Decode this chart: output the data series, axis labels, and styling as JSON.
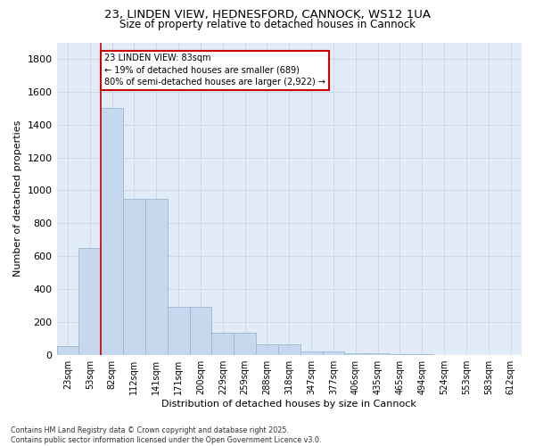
{
  "title1": "23, LINDEN VIEW, HEDNESFORD, CANNOCK, WS12 1UA",
  "title2": "Size of property relative to detached houses in Cannock",
  "xlabel": "Distribution of detached houses by size in Cannock",
  "ylabel": "Number of detached properties",
  "categories": [
    "23sqm",
    "53sqm",
    "82sqm",
    "112sqm",
    "141sqm",
    "171sqm",
    "200sqm",
    "229sqm",
    "259sqm",
    "288sqm",
    "318sqm",
    "347sqm",
    "377sqm",
    "406sqm",
    "435sqm",
    "465sqm",
    "494sqm",
    "524sqm",
    "553sqm",
    "583sqm",
    "612sqm"
  ],
  "values": [
    50,
    650,
    1500,
    950,
    950,
    290,
    290,
    135,
    135,
    65,
    65,
    20,
    20,
    10,
    10,
    2,
    2,
    1,
    1,
    0,
    0
  ],
  "bar_color": "#c5d8ed",
  "bar_edge_color": "#9ab5d4",
  "grid_color": "#ccd8ec",
  "background_color": "#e2ecf8",
  "vline_color": "#cc0000",
  "vline_x": 1.5,
  "annotation_text": "23 LINDEN VIEW: 83sqm\n← 19% of detached houses are smaller (689)\n80% of semi-detached houses are larger (2,922) →",
  "annotation_box_edgecolor": "#cc0000",
  "footer_text": "Contains HM Land Registry data © Crown copyright and database right 2025.\nContains public sector information licensed under the Open Government Licence v3.0.",
  "ylim": [
    0,
    1900
  ],
  "yticks": [
    0,
    200,
    400,
    600,
    800,
    1000,
    1200,
    1400,
    1600,
    1800
  ]
}
